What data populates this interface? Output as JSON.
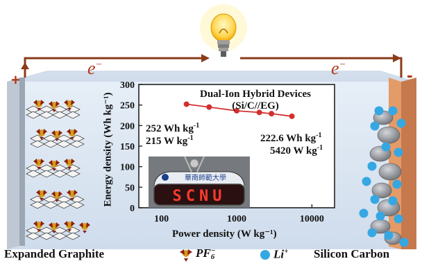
{
  "circuit": {
    "plus": "+",
    "minus": "-",
    "electron_left": "e",
    "electron_right": "e",
    "electron_sup": "−"
  },
  "inset": {
    "title_line1": "Dual-Ion Hybrid Devices",
    "title_line2": "(Si/C//EG)",
    "ann_left_energy": "252 Wh kg",
    "ann_left_power": "215 W kg",
    "ann_right_energy": "222.6 Wh kg",
    "ann_right_power": "5420 W kg",
    "ann_unit_sup": "-1",
    "photo_sign": "SCNU",
    "photo_banner": "華南師範大學"
  },
  "chart_data": {
    "type": "line",
    "xlabel": "Power density (W kg⁻¹)",
    "ylabel": "Energy density (Wh kg⁻¹)",
    "xscale": "log",
    "xlim": [
      50,
      20000
    ],
    "ylim": [
      0,
      300
    ],
    "x_ticks": [
      "100",
      "1000",
      "10000"
    ],
    "y_ticks": [
      "0",
      "50",
      "100",
      "150",
      "200",
      "250",
      "300"
    ],
    "series": [
      {
        "color": "#d32f2f",
        "x": [
          215,
          430,
          1000,
          2000,
          2900,
          5420
        ],
        "y": [
          252,
          245,
          236,
          232,
          229,
          222.6
        ]
      }
    ]
  },
  "legend": {
    "left_electrode": "Expanded Graphite",
    "anion": "PF",
    "anion_sub": "6",
    "anion_sup": "−",
    "cation": "Li",
    "cation_sup": "+",
    "right_electrode": "Silicon Carbon"
  },
  "colors": {
    "wire": "#8a3b1a",
    "electrolyte": "#dde9f4",
    "anode": "#c7794e",
    "li_ion": "#35a7e3",
    "pf6": "#d69a1c",
    "data_line": "#d32f2f"
  }
}
